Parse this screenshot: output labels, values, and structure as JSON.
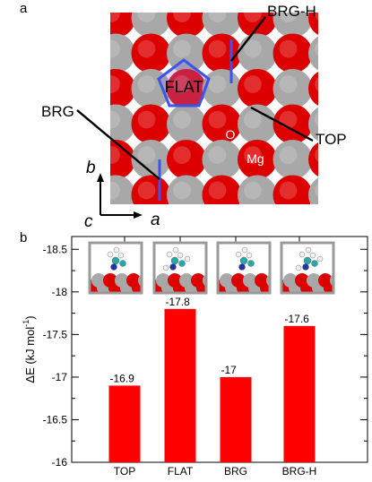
{
  "panel_a": {
    "label": "a",
    "site_labels": {
      "brg_h": "BRG-H",
      "flat": "FLAT",
      "brg": "BRG",
      "top": "TOP",
      "o": "O",
      "mg": "Mg"
    },
    "axes": {
      "b": "b",
      "c": "c",
      "a": "a"
    },
    "colors": {
      "oxygen": "#dd0000",
      "magnesium": "#a8a8a8",
      "marker": "#3a55e8"
    }
  },
  "chart_data": {
    "type": "bar",
    "panel_label": "b",
    "categories": [
      "TOP",
      "FLAT",
      "BRG",
      "BRG-H"
    ],
    "values": [
      -16.9,
      -17.8,
      -17,
      -17.6
    ],
    "data_labels": [
      "-16.9",
      "-17.8",
      "-17",
      "-17.6"
    ],
    "ylabel": "ΔE (kJ mol",
    "ylabel_sup": "-1",
    "ylabel_close": ")",
    "ylim": [
      -16,
      -18.65
    ],
    "y_inverted": true,
    "yticks": [
      -18.5,
      -18,
      -17.5,
      -17,
      -16.5,
      -16
    ],
    "ytick_labels": [
      "-18.5",
      "-18",
      "-17.5",
      "-17",
      "-16.5",
      "-16"
    ],
    "bar_color": "#ff0000",
    "grid": false
  }
}
